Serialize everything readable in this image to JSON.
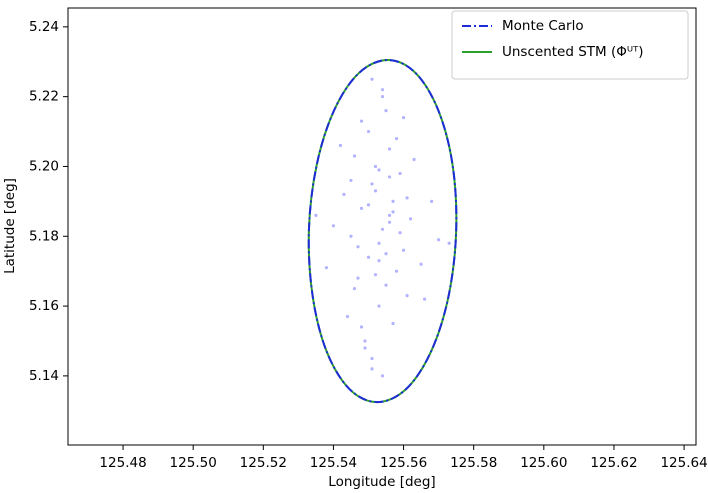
{
  "chart_data": {
    "type": "scatter",
    "xlabel": "Longitude [deg]",
    "ylabel": "Latitude [deg]",
    "xlim": [
      125.4643,
      125.6434
    ],
    "ylim": [
      5.1202,
      5.2454
    ],
    "xticks": [
      125.48,
      {
        "value": 125.5,
        "label": "125.50"
      },
      125.52,
      125.54,
      125.56,
      125.58,
      {
        "value": 125.6,
        "label": "125.60"
      },
      125.62,
      125.64
    ],
    "yticks": [
      5.14,
      5.16,
      5.18,
      {
        "value": 5.2,
        "label": "5.20"
      },
      5.22,
      5.24
    ],
    "legend": "upper right",
    "samples": {
      "color": "#0000ff",
      "x": [
        125.554,
        125.551,
        125.558,
        125.548,
        125.556,
        125.56,
        125.545,
        125.553,
        125.55,
        125.557,
        125.562,
        125.547,
        125.555,
        125.552,
        125.549,
        125.559,
        125.543,
        125.565,
        125.554,
        125.551,
        125.556,
        125.546,
        125.561,
        125.553,
        125.548,
        125.557,
        125.54,
        125.568,
        125.555,
        125.55,
        125.552,
        125.558,
        125.544,
        125.563,
        125.556,
        125.549,
        125.553,
        125.547,
        125.56,
        125.551,
        125.538,
        125.57,
        125.554,
        125.557,
        125.545,
        125.552,
        125.559,
        125.548,
        125.555,
        125.55,
        125.542,
        125.566,
        125.553,
        125.556,
        125.546,
        125.561,
        125.551,
        125.554,
        125.535,
        125.573
      ],
      "y": [
        5.182,
        5.195,
        5.17,
        5.188,
        5.205,
        5.176,
        5.18,
        5.16,
        5.21,
        5.19,
        5.185,
        5.168,
        5.175,
        5.2,
        5.15,
        5.198,
        5.192,
        5.172,
        5.22,
        5.142,
        5.186,
        5.203,
        5.163,
        5.178,
        5.213,
        5.155,
        5.183,
        5.19,
        5.166,
        5.174,
        5.193,
        5.208,
        5.157,
        5.202,
        5.184,
        5.148,
        5.199,
        5.177,
        5.214,
        5.225,
        5.171,
        5.179,
        5.14,
        5.187,
        5.196,
        5.169,
        5.181,
        5.154,
        5.216,
        5.189,
        5.206,
        5.162,
        5.173,
        5.197,
        5.165,
        5.191,
        5.145,
        5.222,
        5.186,
        5.178
      ]
    },
    "series": [
      {
        "name": "Monte Carlo",
        "color": "#1f2bd6",
        "style": "dashdot",
        "x": [
          125.575,
          125.574,
          125.5699,
          125.5634,
          125.5555,
          125.5473,
          125.5402,
          125.5352,
          125.533,
          125.5341,
          125.5381,
          125.5446,
          125.5525,
          125.5607,
          125.5678,
          125.5728,
          125.575
        ],
        "y": [
          5.1815,
          5.2003,
          5.2161,
          5.2268,
          5.2305,
          5.2268,
          5.2161,
          5.2003,
          5.1815,
          5.1627,
          5.1469,
          5.1362,
          5.1325,
          5.1362,
          5.1469,
          5.1627,
          5.1815
        ]
      },
      {
        "name": "Unscented STM (Φᵁᵀ)",
        "color": "#2ca02c",
        "style": "solid",
        "x": [
          125.575,
          125.574,
          125.5699,
          125.5634,
          125.5555,
          125.5473,
          125.5402,
          125.5352,
          125.533,
          125.5341,
          125.5381,
          125.5446,
          125.5525,
          125.5607,
          125.5678,
          125.5728,
          125.575
        ],
        "y": [
          5.1815,
          5.2003,
          5.2161,
          5.2268,
          5.2305,
          5.2268,
          5.2161,
          5.2003,
          5.1815,
          5.1627,
          5.1469,
          5.1362,
          5.1325,
          5.1362,
          5.1469,
          5.1627,
          5.1815
        ]
      }
    ]
  }
}
